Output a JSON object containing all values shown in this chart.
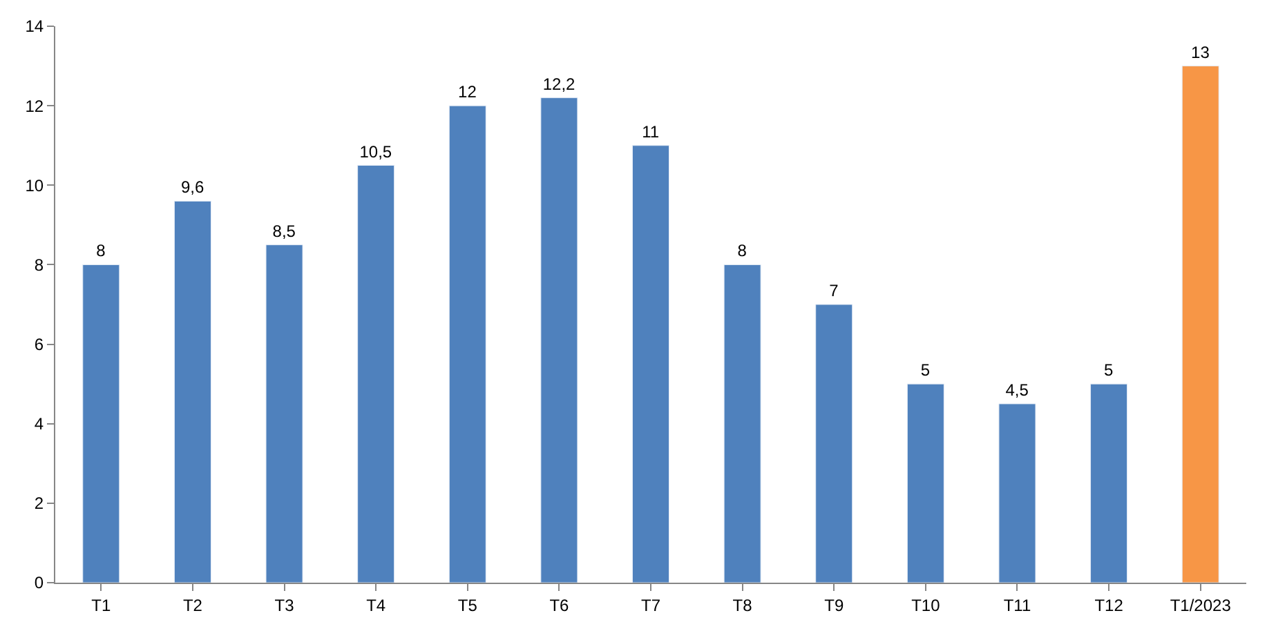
{
  "chart_data": {
    "type": "bar",
    "categories": [
      "T1",
      "T2",
      "T3",
      "T4",
      "T5",
      "T6",
      "T7",
      "T8",
      "T9",
      "T10",
      "T11",
      "T12",
      "T1/2023"
    ],
    "values": [
      8,
      9.6,
      8.5,
      10.5,
      12,
      12.2,
      11,
      8,
      7,
      5,
      4.5,
      5,
      13
    ],
    "value_labels": [
      "8",
      "9,6",
      "8,5",
      "10,5",
      "12",
      "12,2",
      "11",
      "8",
      "7",
      "5",
      "4,5",
      "5",
      "13"
    ],
    "colors": [
      "#4f81bd",
      "#4f81bd",
      "#4f81bd",
      "#4f81bd",
      "#4f81bd",
      "#4f81bd",
      "#4f81bd",
      "#4f81bd",
      "#4f81bd",
      "#4f81bd",
      "#4f81bd",
      "#4f81bd",
      "#f79646"
    ],
    "ylim": [
      0,
      14
    ],
    "yticks": [
      0,
      2,
      4,
      6,
      8,
      10,
      12,
      14
    ]
  }
}
